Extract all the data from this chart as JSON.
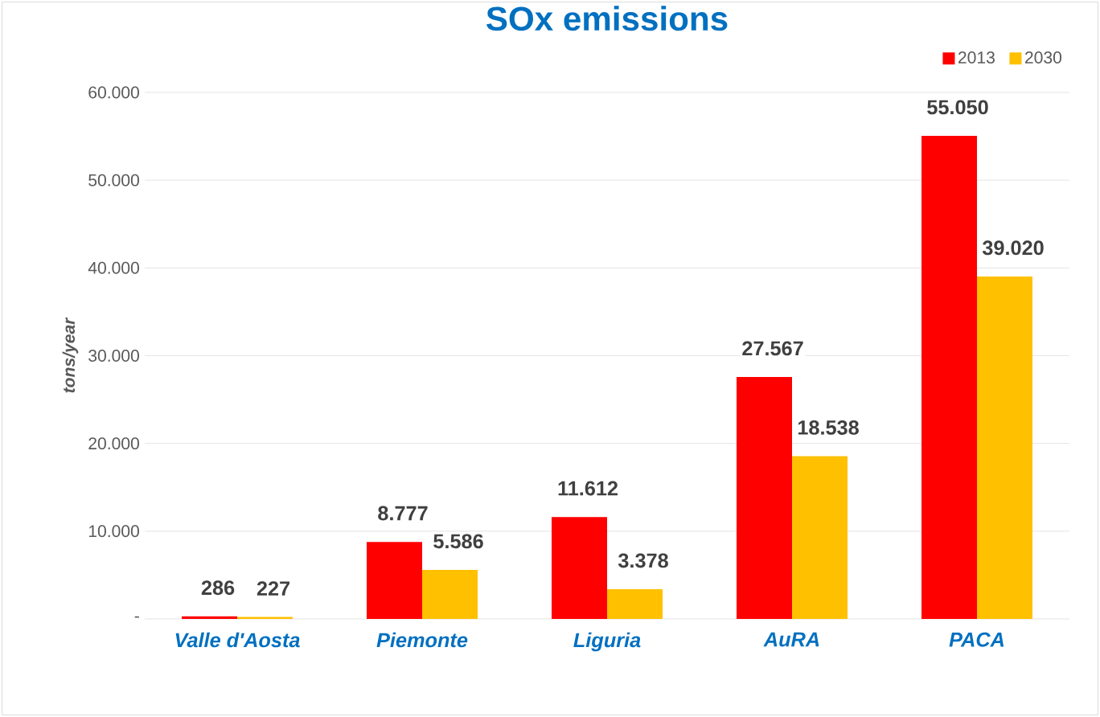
{
  "chart_data": {
    "type": "bar",
    "title": "SOx emissions",
    "ylabel": "tons/year",
    "categories": [
      "Valle d'Aosta",
      "Piemonte",
      "Liguria",
      "AuRA",
      "PACA"
    ],
    "series": [
      {
        "name": "2013",
        "color": "#ff0000",
        "values": [
          286,
          8777,
          11612,
          27567,
          55050
        ],
        "value_labels": [
          "286",
          "8.777",
          "11.612",
          "27.567",
          "55.050"
        ]
      },
      {
        "name": "2030",
        "color": "#ffc000",
        "values": [
          227,
          5586,
          3378,
          18538,
          39020
        ],
        "value_labels": [
          "227",
          "5.586",
          "3.378",
          "18.538",
          "39.020"
        ]
      }
    ],
    "ylim": [
      0,
      60000
    ],
    "yticks": [
      {
        "value": 0,
        "label": "-"
      },
      {
        "value": 10000,
        "label": "10.000"
      },
      {
        "value": 20000,
        "label": "20.000"
      },
      {
        "value": 30000,
        "label": "30.000"
      },
      {
        "value": 40000,
        "label": "40.000"
      },
      {
        "value": 50000,
        "label": "50.000"
      },
      {
        "value": 60000,
        "label": "60.000"
      }
    ],
    "grid": "y",
    "legend": "top right"
  }
}
